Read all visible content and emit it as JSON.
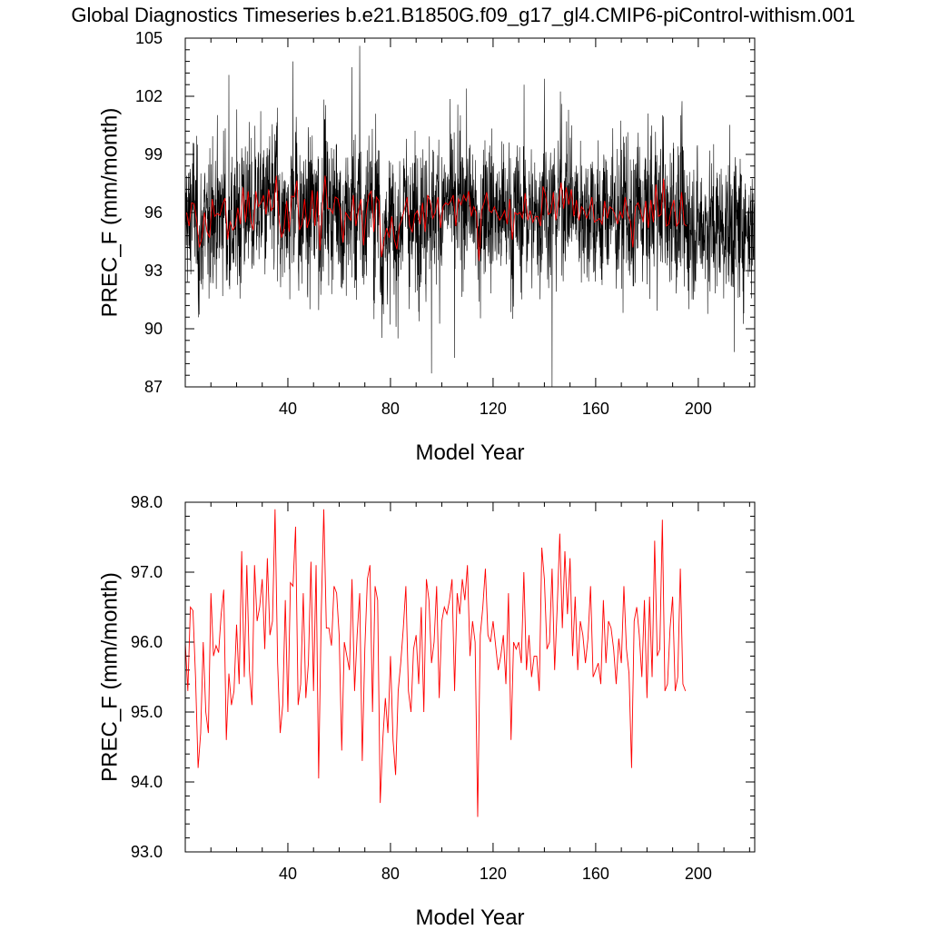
{
  "figure": {
    "title": "Global Diagnostics Timeseries b.e21.B1850G.f09_g17_gl4.CMIP6-piControl-withism.001"
  },
  "colors": {
    "monthly_line": "#000000",
    "annual_line": "#ff0000",
    "background": "#ffffff"
  },
  "chart_data": [
    {
      "type": "line",
      "title": "Global Diagnostics Timeseries b.e21.B1850G.f09_g17_gl4.CMIP6-piControl-withism.001",
      "xlabel": "Model Year",
      "ylabel": "PREC_F (mm/month)",
      "xlim": [
        0,
        222
      ],
      "ylim": [
        87,
        105
      ],
      "xticks": [
        40,
        80,
        120,
        160,
        200
      ],
      "xtick_labels": [
        "40",
        "80",
        "120",
        "160",
        "200"
      ],
      "yticks": [
        87,
        90,
        93,
        96,
        99,
        102,
        105
      ],
      "ytick_labels": [
        "87",
        "90",
        "93",
        "96",
        "99",
        "102",
        "105"
      ],
      "grid": false,
      "series": [
        {
          "color": "#000000",
          "resolution": "monthly",
          "x_start": 0,
          "x_end": 222,
          "mean": 96.0,
          "min": 87.0,
          "max": 104.6,
          "peaks": [
            {
              "x": 17,
              "y": 103.1
            },
            {
              "x": 42,
              "y": 103.8
            },
            {
              "x": 65,
              "y": 103.5
            },
            {
              "x": 68,
              "y": 104.6
            },
            {
              "x": 140,
              "y": 102.9
            }
          ],
          "troughs": [
            {
              "x": 96,
              "y": 87.7
            },
            {
              "x": 105,
              "y": 88.5
            },
            {
              "x": 143,
              "y": 87.0
            },
            {
              "x": 214,
              "y": 88.8
            }
          ]
        },
        {
          "color": "#ff0000",
          "resolution": "annual",
          "x_start": 0,
          "x_end": 222,
          "values_ref": "chart_data.1.series.0.values"
        }
      ]
    },
    {
      "type": "line",
      "xlabel": "Model Year",
      "ylabel": "PREC_F (mm/month)",
      "xlim": [
        0,
        222
      ],
      "ylim": [
        93.0,
        98.0
      ],
      "xticks": [
        40,
        80,
        120,
        160,
        200
      ],
      "xtick_labels": [
        "40",
        "80",
        "120",
        "160",
        "200"
      ],
      "yticks": [
        93.0,
        94.0,
        95.0,
        96.0,
        97.0,
        98.0
      ],
      "ytick_labels": [
        "93.0",
        "94.0",
        "95.0",
        "96.0",
        "97.0",
        "98.0"
      ],
      "grid": false,
      "series": [
        {
          "color": "#ff0000",
          "resolution": "annual",
          "x_start": 0,
          "x_step": 1,
          "values": [
            96.0,
            95.3,
            96.5,
            96.45,
            95.5,
            94.2,
            94.7,
            96.0,
            95.0,
            94.7,
            96.7,
            95.8,
            95.95,
            95.85,
            96.4,
            96.75,
            94.6,
            95.55,
            95.1,
            95.3,
            96.25,
            95.4,
            97.3,
            95.5,
            97.1,
            95.6,
            95.1,
            97.1,
            96.3,
            96.5,
            96.9,
            95.9,
            97.2,
            96.1,
            96.3,
            97.9,
            95.7,
            94.7,
            95.1,
            96.6,
            95.0,
            96.85,
            96.8,
            97.65,
            95.1,
            95.4,
            96.7,
            95.2,
            95.7,
            97.15,
            95.3,
            97.1,
            94.05,
            96.4,
            97.9,
            96.2,
            96.2,
            95.95,
            96.8,
            96.7,
            96.1,
            94.45,
            96.0,
            95.8,
            95.6,
            96.9,
            95.3,
            96.1,
            96.7,
            94.3,
            95.9,
            96.9,
            97.1,
            95.0,
            96.8,
            96.6,
            93.7,
            94.6,
            95.2,
            94.7,
            95.8,
            94.6,
            94.1,
            95.3,
            95.7,
            96.2,
            96.8,
            95.3,
            95.0,
            95.9,
            96.1,
            95.4,
            96.5,
            95.0,
            96.9,
            96.6,
            95.7,
            96.0,
            96.8,
            95.2,
            96.3,
            96.5,
            96.4,
            96.6,
            96.9,
            95.3,
            96.7,
            96.4,
            96.9,
            96.6,
            97.1,
            95.8,
            96.3,
            96.0,
            93.5,
            96.1,
            96.5,
            97.05,
            96.1,
            96.0,
            96.3,
            95.95,
            95.6,
            95.8,
            96.1,
            95.4,
            96.7,
            94.6,
            96.0,
            95.9,
            96.0,
            95.7,
            97.0,
            95.6,
            96.1,
            95.5,
            95.8,
            95.8,
            95.3,
            97.35,
            96.9,
            95.9,
            96.0,
            97.05,
            95.6,
            96.5,
            97.55,
            96.2,
            97.3,
            96.4,
            97.2,
            95.8,
            96.65,
            95.6,
            96.3,
            96.1,
            95.7,
            96.05,
            96.8,
            95.5,
            95.6,
            95.7,
            95.4,
            96.6,
            95.7,
            96.3,
            96.2,
            95.9,
            95.4,
            96.05,
            95.7,
            96.8,
            95.9,
            95.55,
            94.2,
            96.3,
            96.5,
            96.1,
            95.5,
            96.6,
            95.2,
            96.65,
            95.5,
            97.45,
            95.8,
            95.9,
            97.75,
            95.3,
            95.4,
            96.2,
            96.65,
            95.3,
            95.5,
            97.05,
            95.4,
            95.3
          ]
        }
      ]
    }
  ]
}
